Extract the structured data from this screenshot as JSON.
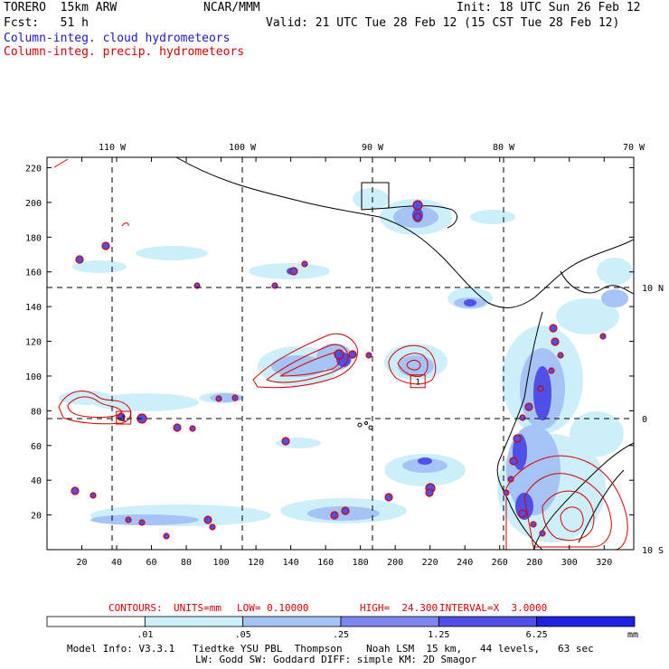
{
  "header": {
    "model_name": "TORERO  15km ARW",
    "institution": "NCAR/MMM",
    "init_time": "Init: 18 UTC Sun 26 Feb 12",
    "forecast_hour": "Fcst:   51 h",
    "valid_time": "Valid: 21 UTC Tue 28 Feb 12 (15 CST Tue 28 Feb 12)",
    "field_cloud": "Column-integ. cloud hydrometeors",
    "field_precip": "Column-integ. precip. hydrometeors"
  },
  "colors": {
    "cloud_field": "#1a1ad0",
    "precip_contours": "#d80000",
    "coastline": "#000000",
    "shade_levels": [
      "#ffffff",
      "#cdeffa",
      "#a5c3f5",
      "#7d87ee",
      "#5050e6",
      "#2020e0"
    ]
  },
  "axes": {
    "bottom_ticks": [
      "20",
      "40",
      "60",
      "80",
      "100",
      "120",
      "140",
      "160",
      "180",
      "200",
      "220",
      "240",
      "260",
      "280",
      "300",
      "320"
    ],
    "left_ticks": [
      "20",
      "40",
      "60",
      "80",
      "100",
      "120",
      "140",
      "160",
      "180",
      "200",
      "220"
    ],
    "longitude_labels": [
      "110 W",
      "100 W",
      "90 W",
      "80 W",
      "70 W"
    ],
    "latitude_labels": [
      "10 N",
      "0",
      "10 S"
    ]
  },
  "highs": [
    {
      "label": "1",
      "gx": 44,
      "gy": 76
    },
    {
      "label": "1",
      "gx": 213,
      "gy": 97
    }
  ],
  "contour_info": {
    "label": "CONTOURS:",
    "units": "UNITS=mm",
    "low": "LOW= 0.10000",
    "high": "HIGH=  24.300",
    "interval": "INTERVAL=X  3.0000"
  },
  "colorbar": {
    "labels": [
      ".01",
      ".05",
      ".25",
      "1.25",
      "6.25"
    ],
    "units": "mm"
  },
  "footer": {
    "line1": "Model Info: V3.3.1   Tiedtke YSU PBL  Thompson    Noah LSM  15 km,   44 levels,   63 sec",
    "line2": "LW: Godd SW: Goddard DIFF: simple KM: 2D Smagor"
  }
}
